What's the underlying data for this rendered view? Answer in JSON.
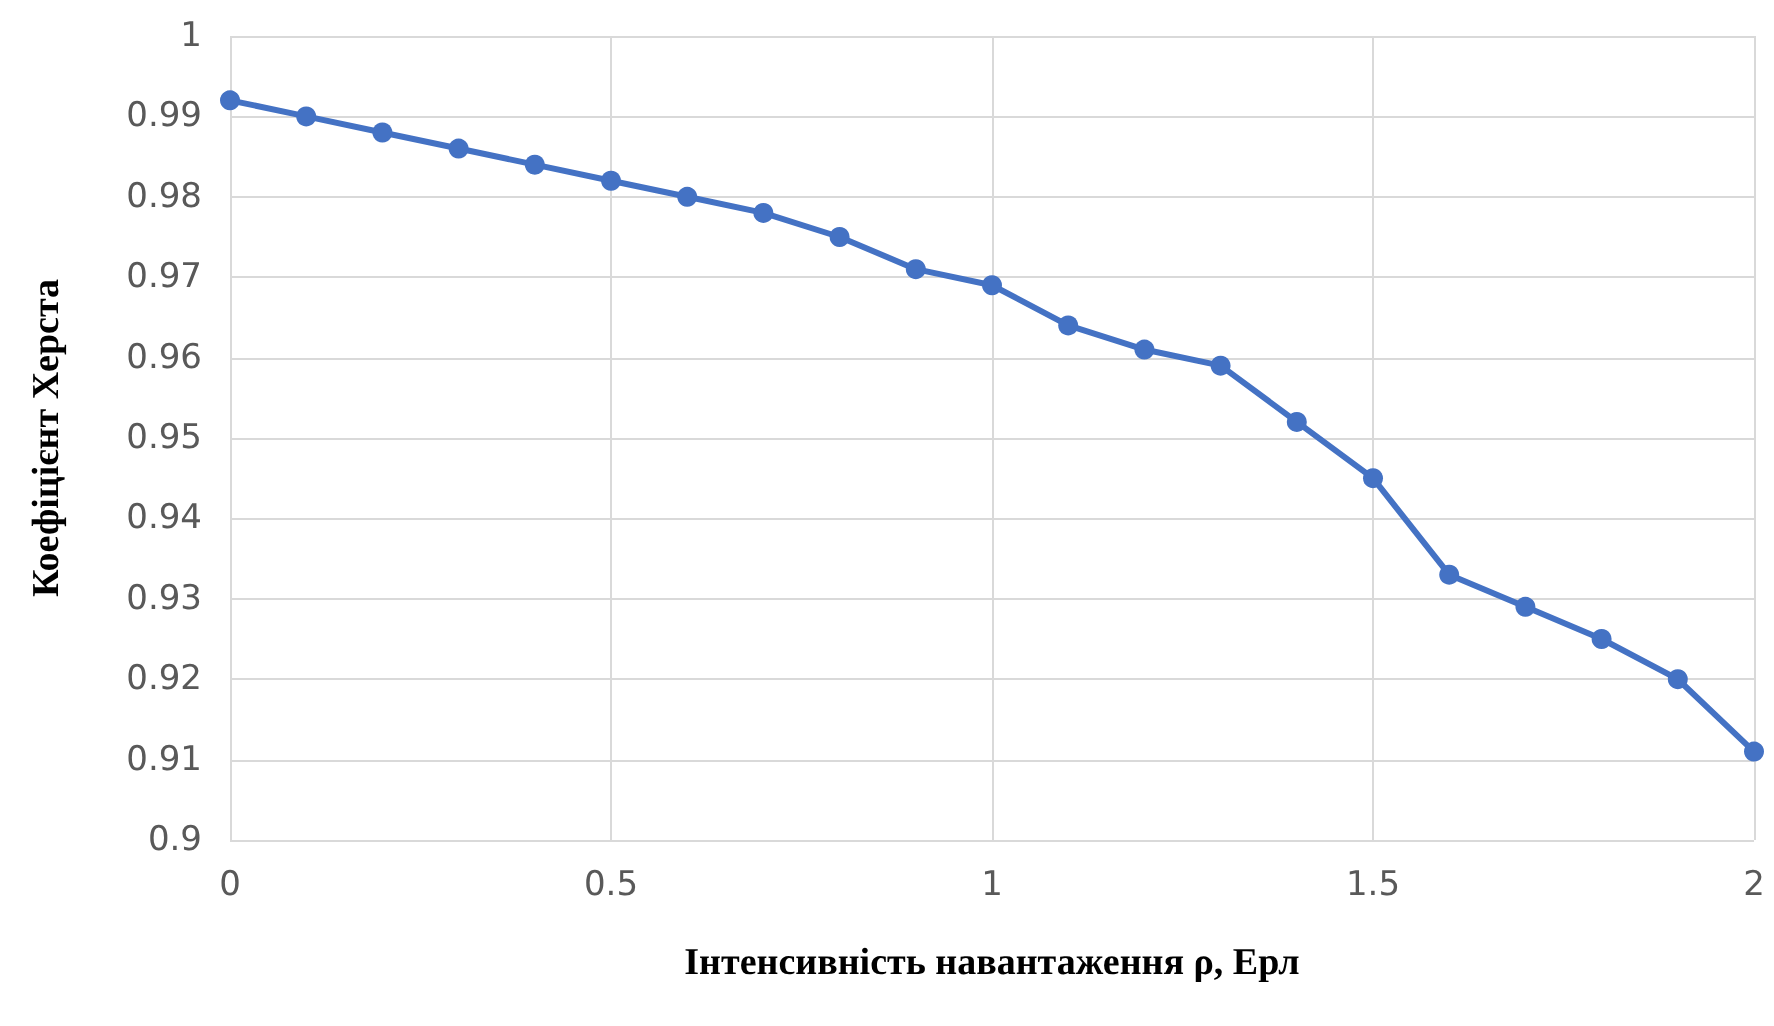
{
  "chart_data": {
    "type": "line",
    "xlabel": "Інтенсивність навантаження ρ, Ерл",
    "ylabel": "Коефіцієнт Херста",
    "x": [
      0,
      0.1,
      0.2,
      0.3,
      0.4,
      0.5,
      0.6,
      0.7,
      0.8,
      0.9,
      1.0,
      1.1,
      1.2,
      1.3,
      1.4,
      1.5,
      1.6,
      1.7,
      1.8,
      1.9,
      2.0
    ],
    "series": [
      {
        "color": "#4472c4",
        "values": [
          0.992,
          0.99,
          0.988,
          0.986,
          0.984,
          0.982,
          0.98,
          0.978,
          0.975,
          0.971,
          0.969,
          0.964,
          0.961,
          0.959,
          0.952,
          0.945,
          0.933,
          0.929,
          0.925,
          0.92,
          0.911
        ]
      }
    ],
    "xlim": [
      0,
      2
    ],
    "xticks": [
      0,
      0.5,
      1,
      1.5,
      2
    ],
    "ylim": [
      0.9,
      1
    ],
    "yticks": [
      0.9,
      0.91,
      0.92,
      0.93,
      0.94,
      0.95,
      0.96,
      0.97,
      0.98,
      0.99,
      1
    ],
    "grid": true,
    "marker": "circle",
    "line_style": "solid"
  }
}
